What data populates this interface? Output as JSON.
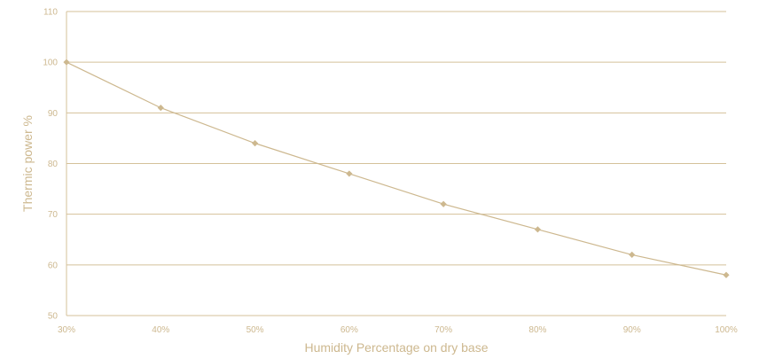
{
  "chart_data": {
    "type": "line",
    "title": "",
    "xlabel": "Humidity Percentage on dry base",
    "ylabel": "Thermic power %",
    "categories": [
      "30%",
      "40%",
      "50%",
      "60%",
      "70%",
      "80%",
      "90%",
      "100%"
    ],
    "x": [
      30,
      40,
      50,
      60,
      70,
      80,
      90,
      100
    ],
    "series": [
      {
        "values": [
          100,
          91,
          84,
          78,
          72,
          67,
          62,
          58
        ]
      }
    ],
    "xlim": [
      30,
      100
    ],
    "ylim": [
      50,
      110
    ],
    "yticks": [
      50,
      60,
      70,
      80,
      90,
      100,
      110
    ],
    "grid": true,
    "legend": "none",
    "color": "#cdb88f",
    "marker": "diamond"
  }
}
